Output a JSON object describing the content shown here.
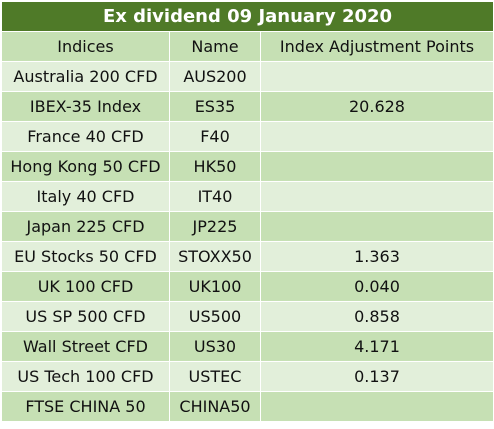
{
  "title": "Ex dividend 09 January 2020",
  "colors": {
    "title_bg": "#4f7a28",
    "title_text": "#ffffff",
    "row_light": "#e2efda",
    "row_dark": "#c6e0b4"
  },
  "columns": [
    "Indices",
    "Name",
    "Index Adjustment Points"
  ],
  "rows": [
    {
      "index": "Australia 200 CFD",
      "name": "AUS200",
      "points": ""
    },
    {
      "index": "IBEX-35 Index",
      "name": "ES35",
      "points": "20.628"
    },
    {
      "index": "France 40 CFD",
      "name": "F40",
      "points": ""
    },
    {
      "index": "Hong Kong 50 CFD",
      "name": "HK50",
      "points": ""
    },
    {
      "index": "Italy 40 CFD",
      "name": "IT40",
      "points": ""
    },
    {
      "index": "Japan 225 CFD",
      "name": "JP225",
      "points": ""
    },
    {
      "index": "EU Stocks 50 CFD",
      "name": "STOXX50",
      "points": "1.363"
    },
    {
      "index": "UK 100 CFD",
      "name": "UK100",
      "points": "0.040"
    },
    {
      "index": "US SP 500 CFD",
      "name": "US500",
      "points": "0.858"
    },
    {
      "index": "Wall Street CFD",
      "name": "US30",
      "points": "4.171"
    },
    {
      "index": "US Tech 100 CFD",
      "name": "USTEC",
      "points": "0.137"
    },
    {
      "index": "FTSE CHINA 50",
      "name": "CHINA50",
      "points": ""
    }
  ]
}
